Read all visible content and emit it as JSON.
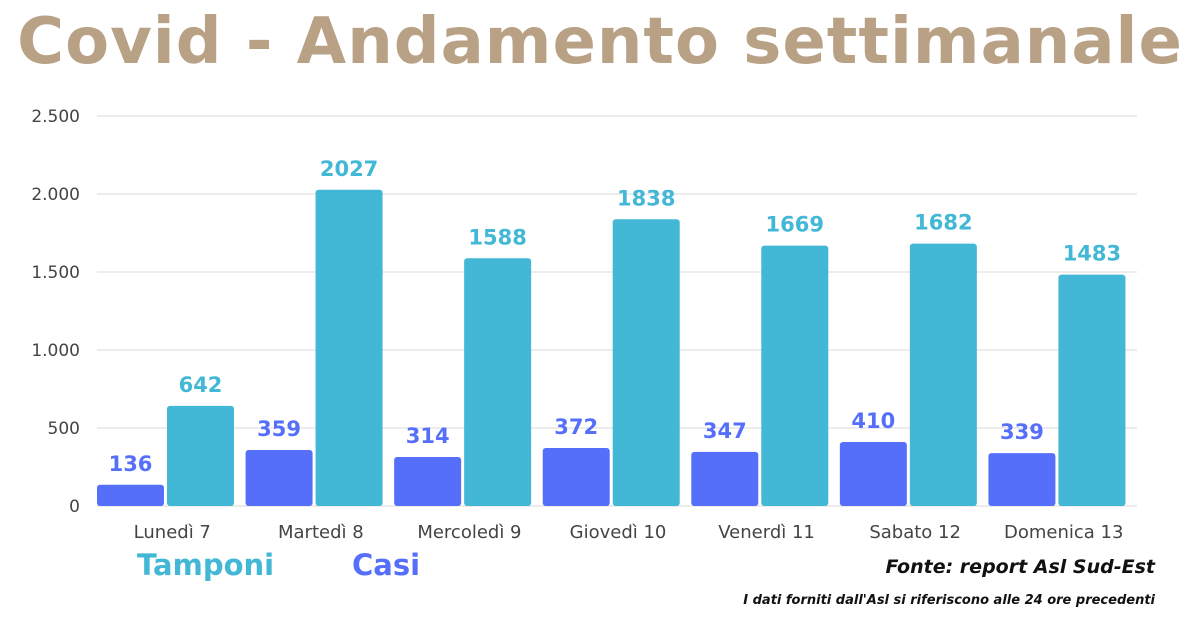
{
  "colors": {
    "title": "#b8a184",
    "tamponi": "#42b7d6",
    "casi": "#566ffb",
    "grid": "#d9d9d9",
    "axis_text": "#444444"
  },
  "chart_data": {
    "type": "bar",
    "title": "Covid - Andamento settimanale",
    "categories": [
      "Lunedì 7",
      "Martedì 8",
      "Mercoledì 9",
      "Giovedì 10",
      "Venerdì 11",
      "Sabato 12",
      "Domenica 13"
    ],
    "series": [
      {
        "name": "Casi",
        "values": [
          136,
          359,
          314,
          372,
          347,
          410,
          339
        ]
      },
      {
        "name": "Tamponi",
        "values": [
          642,
          2027,
          1588,
          1838,
          1669,
          1682,
          1483
        ]
      }
    ],
    "ylim": [
      0,
      2500
    ],
    "yticks": [
      0,
      500,
      1000,
      1500,
      2000,
      2500
    ],
    "ytick_labels": [
      "0",
      "500",
      "1.000",
      "1.500",
      "2.000",
      "2.500"
    ],
    "grid": true,
    "legend": [
      {
        "label": "Tamponi",
        "series": "Tamponi"
      },
      {
        "label": "Casi",
        "series": "Casi"
      }
    ],
    "legend_placement": "bottom-left"
  },
  "notes": {
    "source": "Fonte: report Asl Sud-Est",
    "footnote": "I dati forniti dall'Asl si riferiscono alle 24 ore precedenti"
  }
}
